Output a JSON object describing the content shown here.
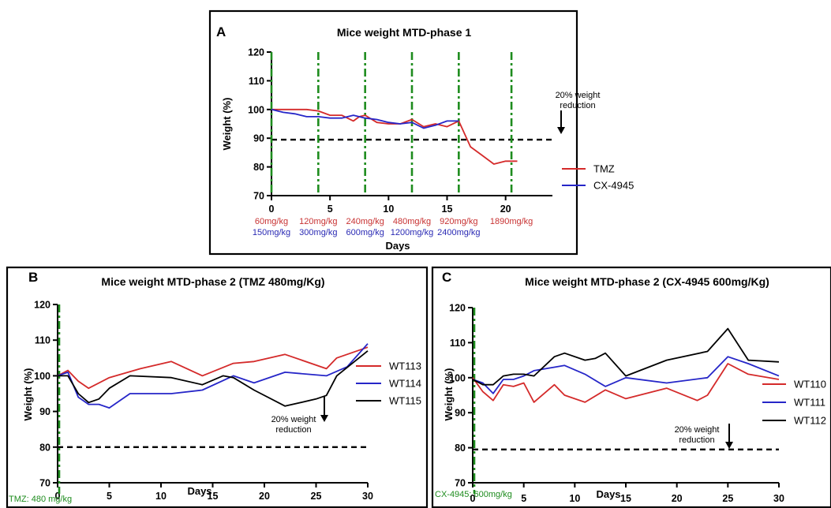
{
  "colors": {
    "red": "#d42a2a",
    "blue": "#2626c8",
    "black": "#000000",
    "dose_line": "#1e8c1e",
    "dose_red": "#c83232",
    "dose_blue": "#2a2ab4"
  },
  "chart_data": [
    {
      "id": "A",
      "type": "line",
      "panel_label": "A",
      "title": "Mice weight MTD-phase 1",
      "xlabel": "Days",
      "ylabel": "Weight (%)",
      "xlim": [
        0,
        24
      ],
      "ylim": [
        70,
        120
      ],
      "xticks": [
        0,
        5,
        10,
        15,
        20
      ],
      "yticks": [
        70,
        80,
        90,
        100,
        110,
        120
      ],
      "threshold_y": 89.5,
      "dose_days": [
        0,
        4,
        8,
        12,
        16,
        20.5
      ],
      "doses_red": [
        "60mg/kg",
        "120mg/kg",
        "240mg/kg",
        "480mg/kg",
        "920mg/kg",
        "1890mg/kg"
      ],
      "doses_blue": [
        "150mg/kg",
        "300mg/kg",
        "600mg/kg",
        "1200mg/kg",
        "2400mg/kg"
      ],
      "annotation": [
        "20% weight",
        "reduction"
      ],
      "legend_position": "right",
      "series": [
        {
          "name": "TMZ",
          "color": "#d42a2a",
          "x": [
            0,
            1,
            2,
            3,
            4,
            5,
            6,
            7,
            7.5,
            8,
            9,
            10,
            11,
            12,
            13,
            14,
            15,
            16,
            17,
            18,
            19,
            20,
            21
          ],
          "y": [
            100,
            100,
            100,
            100,
            99.5,
            98,
            98,
            96,
            97.5,
            98,
            95.5,
            95,
            95,
            96.5,
            94,
            95,
            94,
            96,
            87,
            84,
            81,
            82,
            82
          ]
        },
        {
          "name": "CX-4945",
          "color": "#2626c8",
          "x": [
            0,
            1,
            2,
            3,
            4,
            5,
            6,
            7,
            8,
            9,
            10,
            11,
            12,
            13,
            14,
            15,
            16
          ],
          "y": [
            100,
            99,
            98.5,
            97.5,
            97.5,
            97,
            97,
            98,
            97,
            96.5,
            95.5,
            95,
            95.5,
            93.5,
            94.5,
            96,
            96
          ]
        }
      ]
    },
    {
      "id": "B",
      "type": "line",
      "panel_label": "B",
      "title": "Mice weight MTD-phase 2 (TMZ 480mg/Kg)",
      "xlabel": "Days",
      "ylabel": "Weight (%)",
      "xlim": [
        0,
        30
      ],
      "ylim": [
        70,
        120
      ],
      "xticks": [
        0,
        5,
        10,
        15,
        20,
        25,
        30
      ],
      "yticks": [
        70,
        80,
        90,
        100,
        110,
        120
      ],
      "threshold_y": 80,
      "dose_label": "TMZ: 480 mg/kg",
      "annotation": [
        "20% weight",
        "reduction"
      ],
      "legend_position": "right",
      "series": [
        {
          "name": "WT113",
          "color": "#d42a2a",
          "x": [
            0,
            1,
            2,
            3,
            5,
            8,
            11,
            14,
            17,
            19,
            22,
            26,
            27,
            30
          ],
          "y": [
            100,
            101.5,
            98.5,
            96.5,
            99.5,
            102,
            104,
            100,
            103.5,
            104,
            106,
            102,
            105,
            108
          ]
        },
        {
          "name": "WT114",
          "color": "#2626c8",
          "x": [
            0,
            1,
            2,
            3,
            4,
            5,
            7,
            11,
            14,
            17,
            19,
            22,
            26,
            28,
            30
          ],
          "y": [
            100,
            101,
            94,
            92,
            92,
            91,
            95,
            95,
            96,
            100,
            98,
            101,
            100,
            102.5,
            109
          ]
        },
        {
          "name": "WT115",
          "color": "#000000",
          "x": [
            0,
            1,
            2,
            3,
            4,
            5,
            7,
            11,
            14,
            16,
            17,
            19,
            22,
            25,
            26,
            27,
            30
          ],
          "y": [
            100,
            100,
            95,
            92.5,
            93.5,
            96.5,
            100,
            99.5,
            97.5,
            100,
            99.5,
            96,
            91.5,
            93.5,
            94.5,
            100,
            107
          ]
        }
      ]
    },
    {
      "id": "C",
      "type": "line",
      "panel_label": "C",
      "title": "Mice weight MTD-phase 2 (CX-4945 600mg/Kg)",
      "xlabel": "Days",
      "ylabel": "Weight (%)",
      "xlim": [
        0,
        30
      ],
      "ylim": [
        70,
        120
      ],
      "xticks": [
        0,
        5,
        10,
        15,
        20,
        25,
        30
      ],
      "yticks": [
        70,
        80,
        90,
        100,
        110,
        120
      ],
      "threshold_y": 79.5,
      "dose_label": "CX-4945: 600mg/kg",
      "annotation": [
        "20% weight",
        "reduction"
      ],
      "legend_position": "right",
      "series": [
        {
          "name": "WT110",
          "color": "#d42a2a",
          "x": [
            0,
            1,
            2,
            3,
            4,
            5,
            6,
            8,
            9,
            11,
            13,
            15,
            19,
            22,
            23,
            25,
            27,
            30
          ],
          "y": [
            100,
            96,
            93.5,
            98,
            97.5,
            98.5,
            93,
            98,
            95,
            93,
            96.5,
            94,
            97,
            93.5,
            95,
            104,
            101,
            99.5
          ]
        },
        {
          "name": "WT111",
          "color": "#2626c8",
          "x": [
            0,
            1,
            2,
            3,
            4,
            5,
            6,
            8,
            9,
            11,
            13,
            15,
            19,
            23,
            25,
            27,
            30
          ],
          "y": [
            99.5,
            98.5,
            95.5,
            99.5,
            99.5,
            100.5,
            102,
            103,
            103.5,
            101,
            97.5,
            100,
            98.5,
            100,
            106,
            104,
            100.5
          ]
        },
        {
          "name": "WT112",
          "color": "#000000",
          "x": [
            0,
            1,
            2,
            3,
            4,
            5,
            6,
            8,
            9,
            11,
            12,
            13,
            15,
            19,
            23,
            25,
            27,
            30
          ],
          "y": [
            99.5,
            98,
            98,
            100.5,
            101,
            101,
            100.5,
            106,
            107,
            105,
            105.5,
            107,
            100.5,
            105,
            107.5,
            114,
            105,
            104.5
          ]
        }
      ]
    }
  ]
}
